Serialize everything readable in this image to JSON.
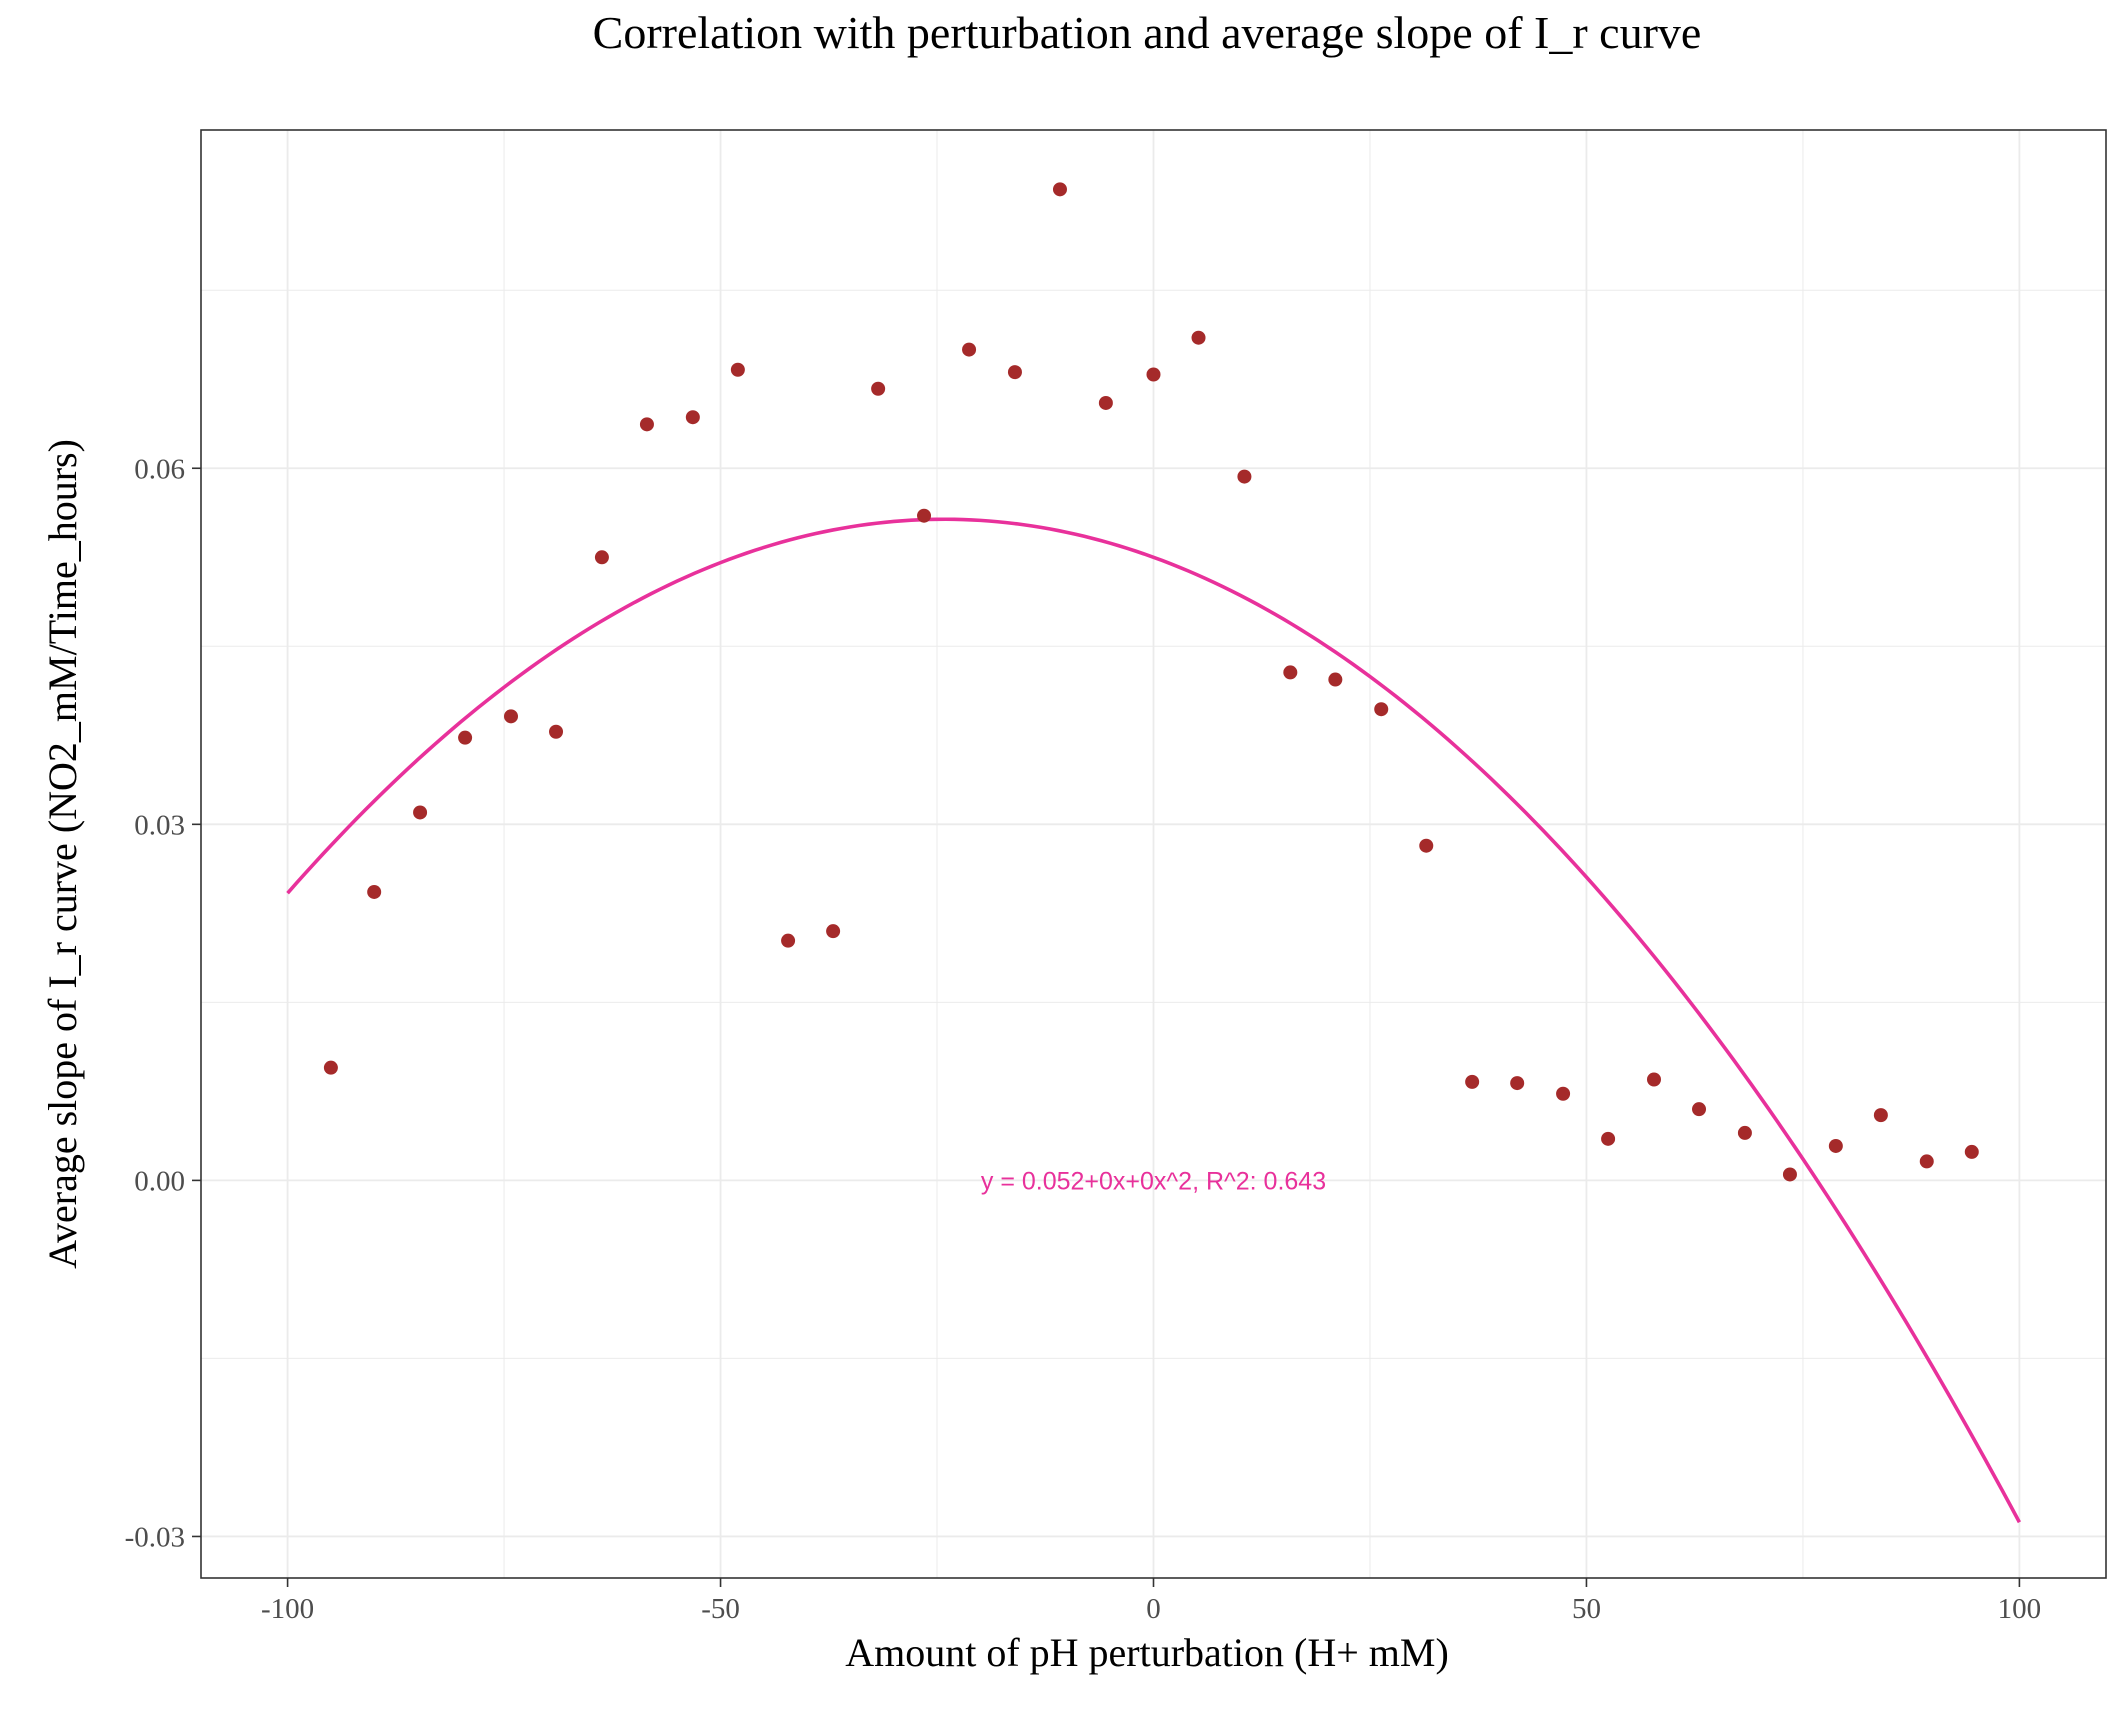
{
  "chart_data": {
    "type": "scatter",
    "title": "Correlation with perturbation and average slope of I_r curve",
    "xlabel": "Amount of pH perturbation (H+ mM)",
    "ylabel": "Average slope of I_r curve (NO2_mM/Time_hours)",
    "xlim": [
      -110,
      110
    ],
    "ylim": [
      -0.0335,
      0.0885
    ],
    "x_ticks": [
      -100,
      -50,
      0,
      50,
      100
    ],
    "x_tick_labels": [
      "-100",
      "-50",
      "0",
      "50",
      "100"
    ],
    "y_ticks": [
      -0.03,
      0.0,
      0.03,
      0.06
    ],
    "y_tick_labels": [
      "-0.03",
      "0.00",
      "0.03",
      "0.06"
    ],
    "grid": true,
    "colors": {
      "points": "#a52a2a",
      "fit": "#e8319b",
      "grid": "#ebebeb",
      "panel_border": "#333333"
    },
    "series": [
      {
        "kind": "points",
        "x": [
          -95,
          -90,
          -84.7,
          -79.5,
          -74.2,
          -69,
          -63.7,
          -58.5,
          -53.2,
          -48,
          -42.2,
          -37,
          -31.8,
          -26.5,
          -21.3,
          -16,
          -10.8,
          -5.5,
          0,
          5.2,
          10.5,
          15.8,
          21,
          26.3,
          31.5,
          36.8,
          42,
          47.3,
          52.5,
          57.8,
          63,
          68.3,
          73.5,
          78.8,
          84,
          89.3,
          94.5
        ],
        "y": [
          0.0095,
          0.0243,
          0.031,
          0.0373,
          0.0391,
          0.0378,
          0.0525,
          0.0637,
          0.0643,
          0.0683,
          0.0202,
          0.021,
          0.0667,
          0.056,
          0.07,
          0.0681,
          0.0835,
          0.0655,
          0.0679,
          0.071,
          0.0593,
          0.0428,
          0.0422,
          0.0397,
          0.0282,
          0.0083,
          0.0082,
          0.0073,
          0.0035,
          0.0085,
          0.006,
          0.004,
          0.0005,
          0.0029,
          0.0055,
          0.0016,
          0.0024
        ]
      },
      {
        "kind": "fit",
        "type": "line",
        "equation": {
          "a": 0.0525,
          "b": -0.000265,
          "c": -5.48e-06
        },
        "x_range": [
          -100,
          100
        ]
      }
    ],
    "annotations": [
      {
        "text": "y = 0.052+0x+0x^2,  R^2: 0.643",
        "x": 0,
        "y": 0.0
      }
    ]
  }
}
